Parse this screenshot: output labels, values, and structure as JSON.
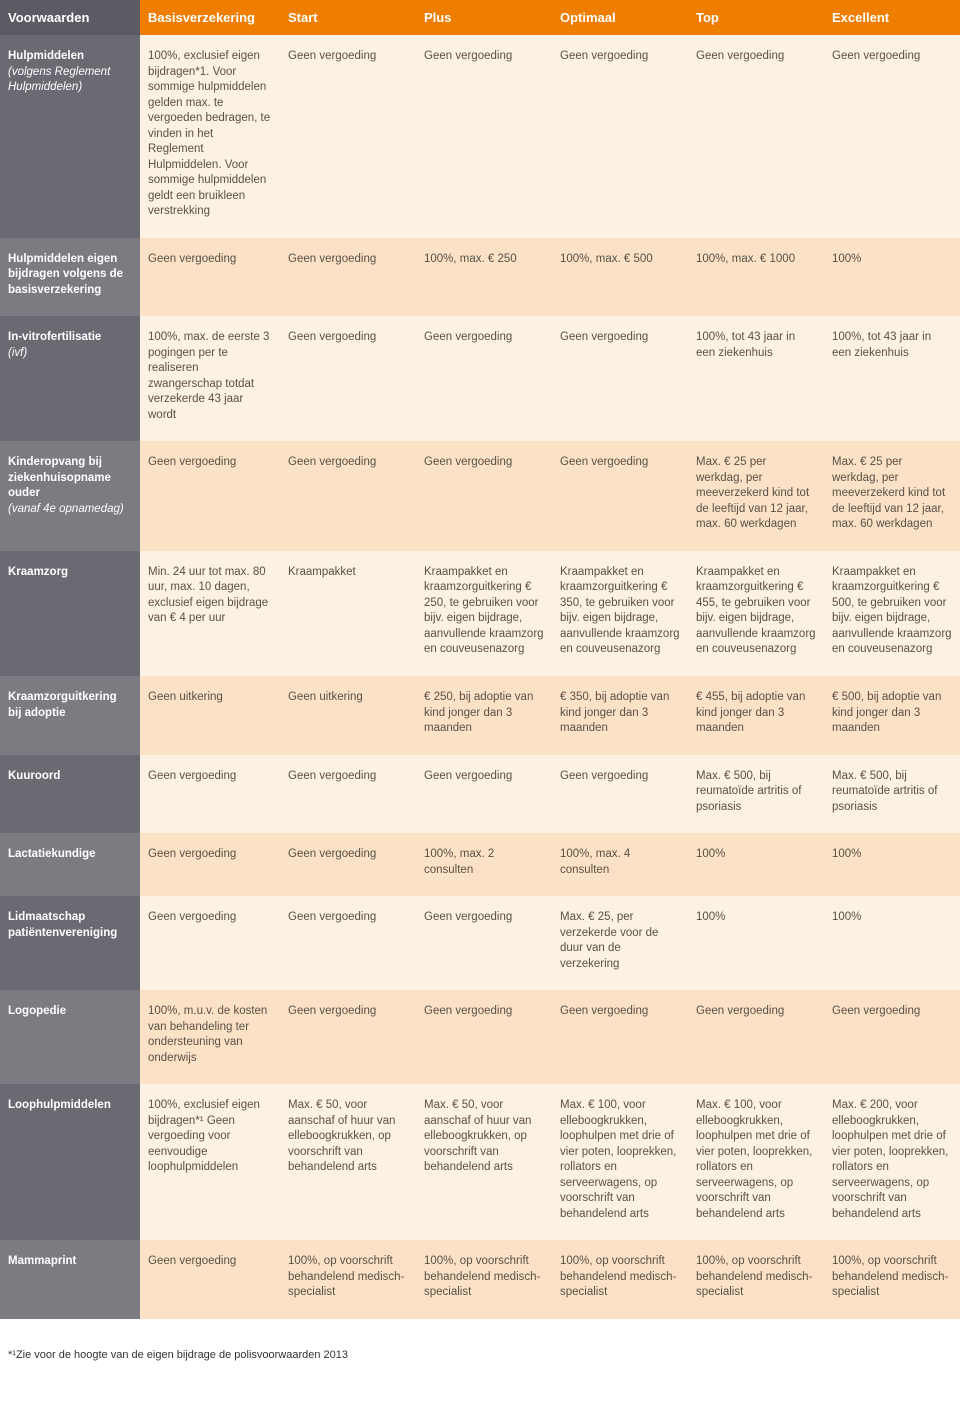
{
  "colors": {
    "header_orange": "#ef7d00",
    "header_grey": "#5b5b63",
    "col1_dark": "#6a6a72",
    "col1_light": "#7b7b82",
    "cell_light": "#fdf1e4",
    "cell_dark": "#fbe2c6",
    "text_body": "#5a5046"
  },
  "columns": [
    "Voorwaarden",
    "Basisverzekering",
    "Start",
    "Plus",
    "Optimaal",
    "Top",
    "Excellent"
  ],
  "rows": [
    {
      "title": "Hulpmiddelen",
      "subtitle": "(volgens Reglement Hulpmiddelen)",
      "cells": [
        "100%, exclusief eigen bijdragen*1. Voor sommige hulpmiddelen gelden max. te vergoeden bedragen, te vinden in het Reglement Hulpmiddelen. Voor sommige hulpmiddelen geldt een bruikleen verstrekking",
        "Geen vergoeding",
        "Geen vergoeding",
        "Geen vergoeding",
        "Geen vergoeding",
        "Geen vergoeding"
      ]
    },
    {
      "title": "Hulpmiddelen eigen bijdragen volgens de basisverzekering",
      "subtitle": "",
      "cells": [
        "Geen vergoeding",
        "Geen vergoeding",
        "100%, max. € 250",
        "100%, max. € 500",
        "100%, max. € 1000",
        "100%"
      ]
    },
    {
      "title": "In-vitrofertilisatie",
      "subtitle": "(ivf)",
      "cells": [
        "100%, max. de eerste 3 pogingen per te realiseren zwangerschap totdat verzekerde 43 jaar wordt",
        "Geen vergoeding",
        "Geen vergoeding",
        "Geen vergoeding",
        "100%, tot 43 jaar in een ziekenhuis",
        "100%, tot 43 jaar in een ziekenhuis"
      ]
    },
    {
      "title": "Kinderopvang bij ziekenhuisopname ouder",
      "subtitle": "(vanaf 4e opnamedag)",
      "cells": [
        "Geen vergoeding",
        "Geen vergoeding",
        "Geen vergoeding",
        "Geen vergoeding",
        "Max. € 25 per werkdag, per meeverzekerd kind tot de leeftijd van 12 jaar, max. 60 werkdagen",
        "Max. € 25 per werkdag, per meeverzekerd kind tot de leeftijd van 12 jaar, max. 60 werkdagen"
      ]
    },
    {
      "title": "Kraamzorg",
      "subtitle": "",
      "cells": [
        "Min. 24 uur tot max. 80 uur, max. 10 dagen, exclusief eigen bijdrage van € 4 per uur",
        "Kraampakket",
        "Kraampakket en kraamzorguitkering € 250, te gebruiken voor bijv. eigen bijdrage, aanvullende kraamzorg en couveusenazorg",
        "Kraampakket en kraamzorguitkering € 350, te gebruiken voor bijv. eigen bijdrage, aanvullende kraamzorg en couveusenazorg",
        "Kraampakket en kraamzorguitkering € 455, te gebruiken voor bijv. eigen bijdrage, aanvullende kraamzorg en couveusenazorg",
        "Kraampakket en kraamzorguitkering € 500, te gebruiken voor bijv. eigen bijdrage, aanvullende kraamzorg en couveusenazorg"
      ]
    },
    {
      "title": "Kraamzorguitkering bij adoptie",
      "subtitle": "",
      "cells": [
        "Geen uitkering",
        "Geen uitkering",
        "€ 250, bij adoptie van kind jonger dan 3 maanden",
        "€ 350, bij adoptie van kind jonger dan 3 maanden",
        "€ 455, bij adoptie van kind jonger dan 3 maanden",
        "€ 500, bij adoptie van kind jonger dan 3 maanden"
      ]
    },
    {
      "title": "Kuuroord",
      "subtitle": "",
      "cells": [
        "Geen vergoeding",
        "Geen vergoeding",
        "Geen vergoeding",
        "Geen vergoeding",
        "Max. € 500, bij reumatoïde artritis of psoriasis",
        "Max. € 500, bij reumatoïde artritis of psoriasis"
      ]
    },
    {
      "title": "Lactatiekundige",
      "subtitle": "",
      "cells": [
        "Geen vergoeding",
        "Geen vergoeding",
        "100%, max. 2 consulten",
        "100%, max. 4 consulten",
        "100%",
        "100%"
      ]
    },
    {
      "title": "Lidmaatschap patiëntenvereniging",
      "subtitle": "",
      "cells": [
        "Geen vergoeding",
        "Geen vergoeding",
        "Geen vergoeding",
        "Max. € 25, per verzekerde voor de duur van de verzekering",
        "100%",
        "100%"
      ]
    },
    {
      "title": "Logopedie",
      "subtitle": "",
      "cells": [
        "100%, m.u.v. de kosten van behandeling ter ondersteuning van onderwijs",
        "Geen vergoeding",
        "Geen vergoeding",
        "Geen vergoeding",
        "Geen vergoeding",
        "Geen vergoeding"
      ]
    },
    {
      "title": "Loophulpmiddelen",
      "subtitle": "",
      "cells": [
        "100%, exclusief eigen bijdragen*¹ Geen vergoeding voor eenvoudige loophulpmiddelen",
        "Max. € 50, voor aanschaf of huur van elleboogkrukken, op voorschrift van behandelend arts",
        "Max. € 50, voor aanschaf of huur van elleboogkrukken, op voorschrift van behandelend arts",
        "Max. € 100, voor elleboogkrukken, loophulpen met drie of vier poten, looprekken, rollators en serveerwagens, op voorschrift van behandelend arts",
        "Max. € 100, voor elleboogkrukken, loophulpen met drie of vier poten, looprekken, rollators en serveerwagens, op voorschrift van behandelend arts",
        "Max. € 200, voor elleboogkrukken, loophulpen met drie of vier poten, looprekken, rollators en serveerwagens, op voorschrift van behandelend arts"
      ]
    },
    {
      "title": "Mammaprint",
      "subtitle": "",
      "cells": [
        "Geen vergoeding",
        "100%, op voorschrift behandelend medisch-specialist",
        "100%, op voorschrift behandelend medisch-specialist",
        "100%, op voorschrift behandelend medisch-specialist",
        "100%, op voorschrift behandelend medisch-specialist",
        "100%, op voorschrift behandelend medisch-specialist"
      ]
    }
  ],
  "footnote": "*¹Zie voor de hoogte van de eigen bijdrage de polisvoorwaarden 2013"
}
